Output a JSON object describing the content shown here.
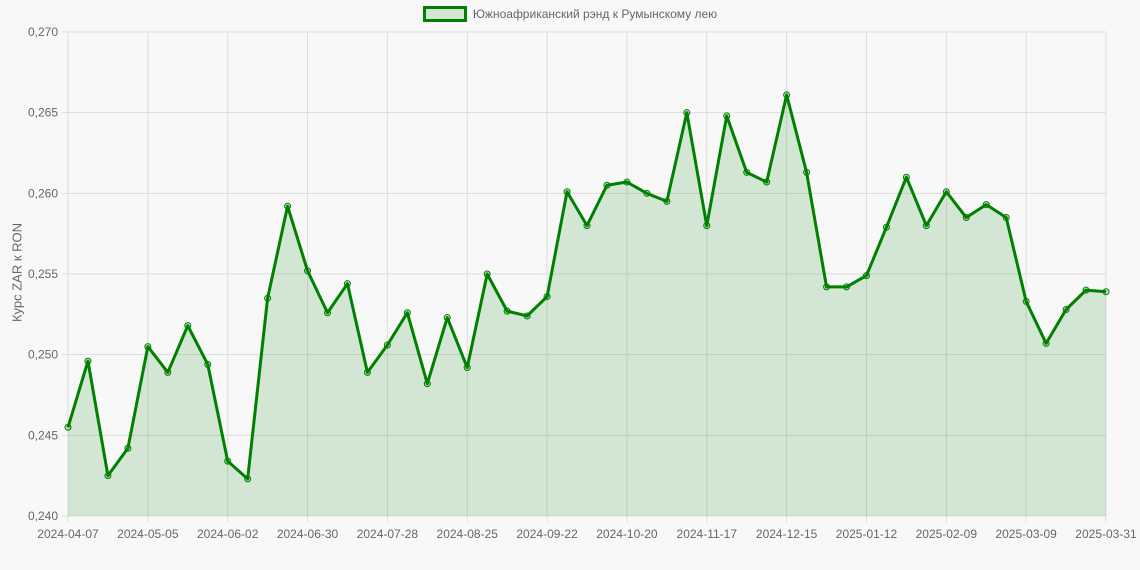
{
  "legend": {
    "label": "Южноафриканский рэнд к Румынскому лею",
    "color": "#008000"
  },
  "ylabel": "Курс ZAR к RON",
  "chart_data": {
    "type": "area",
    "title": "",
    "xlabel": "",
    "ylabel": "Курс ZAR к RON",
    "ylim": [
      0.24,
      0.27
    ],
    "yticks": [
      "0,240",
      "0,245",
      "0,250",
      "0,255",
      "0,260",
      "0,265",
      "0,270"
    ],
    "xticks": [
      "2024-04-07",
      "2024-05-05",
      "2024-06-02",
      "2024-06-30",
      "2024-07-28",
      "2024-08-25",
      "2024-09-22",
      "2024-10-20",
      "2024-11-17",
      "2024-12-15",
      "2025-01-12",
      "2025-02-09",
      "2025-03-09",
      "2025-03-31"
    ],
    "grid": true,
    "legend_position": "top",
    "series": [
      {
        "name": "Южноафриканский рэнд к Румынскому лею",
        "color": "#008000",
        "fill": "rgba(0,128,0,0.15)",
        "values": [
          0.2455,
          0.2496,
          0.2425,
          0.2442,
          0.2505,
          0.2489,
          0.2518,
          0.2494,
          0.2434,
          0.2423,
          0.2535,
          0.2592,
          0.2552,
          0.2526,
          0.2544,
          0.2489,
          0.2506,
          0.2526,
          0.2482,
          0.2523,
          0.2492,
          0.255,
          0.2527,
          0.2524,
          0.2536,
          0.2601,
          0.258,
          0.2605,
          0.2607,
          0.26,
          0.2595,
          0.265,
          0.258,
          0.2648,
          0.2613,
          0.2607,
          0.2661,
          0.2613,
          0.2542,
          0.2542,
          0.2549,
          0.2579,
          0.261,
          0.258,
          0.2601,
          0.2585,
          0.2593,
          0.2585,
          0.2533,
          0.2507,
          0.2528,
          0.254,
          0.2539
        ]
      }
    ]
  }
}
